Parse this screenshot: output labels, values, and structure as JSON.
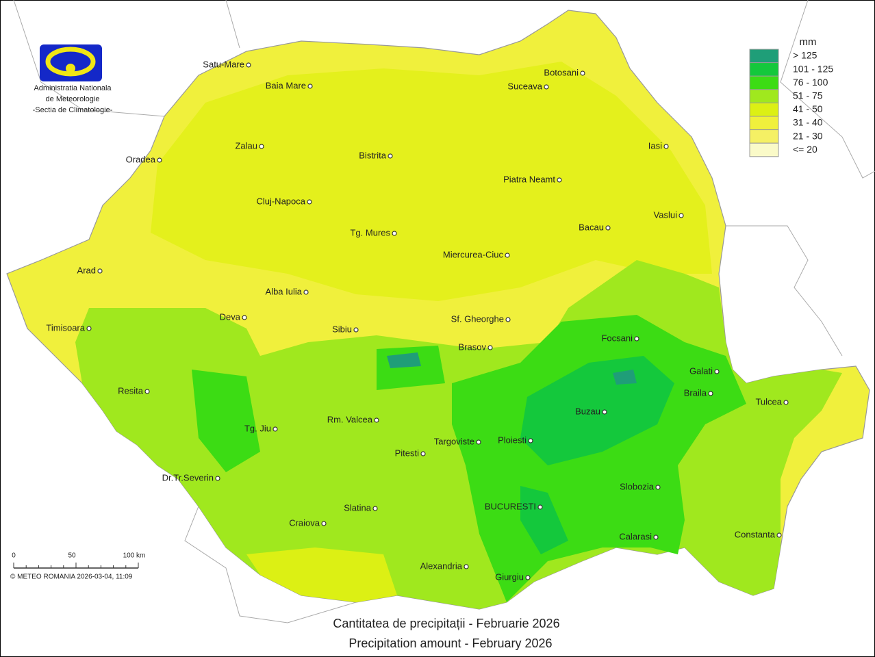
{
  "logo": {
    "lines": [
      "Administratia Nationala",
      "de Meteorologie",
      "-Sectia de Climatologie-"
    ]
  },
  "legend": {
    "unit": "mm",
    "items": [
      {
        "label": "> 125",
        "color": "#1f9e78"
      },
      {
        "label": "101 - 125",
        "color": "#14c83c"
      },
      {
        "label": "76 - 100",
        "color": "#3cdc14"
      },
      {
        "label": "51 - 75",
        "color": "#a0e81e"
      },
      {
        "label": "41 - 50",
        "color": "#dcf014"
      },
      {
        "label": "31 - 40",
        "color": "#f0f03c"
      },
      {
        "label": "21 - 30",
        "color": "#f5f064"
      },
      {
        "label": "<= 20",
        "color": "#fafac8"
      }
    ]
  },
  "cities": [
    "Satu-Mare",
    "Baia Mare",
    "Suceava",
    "Botosani",
    "Zalau",
    "Oradea",
    "Bistrita",
    "Iasi",
    "Piatra Neamt",
    "Cluj-Napoca",
    "Vaslui",
    "Bacau",
    "Tg. Mures",
    "Miercurea-Ciuc",
    "Arad",
    "Alba Iulia",
    "Deva",
    "Sf. Gheorghe",
    "Timisoara",
    "Sibiu",
    "Focsani",
    "Brasov",
    "Galati",
    "Resita",
    "Braila",
    "Tulcea",
    "Buzau",
    "Rm. Valcea",
    "Tg. Jiu",
    "Ploiesti",
    "Targoviste",
    "Pitesti",
    "Dr.Tr.Severin",
    "Slobozia",
    "BUCURESTI",
    "Slatina",
    "Craiova",
    "Constanta",
    "Calarasi",
    "Alexandria",
    "Giurgiu"
  ],
  "scale_bar": {
    "labels": [
      "0",
      "50",
      "100 km"
    ]
  },
  "copyright": "© METEO ROMANIA 2026-03-04, 11:09",
  "title": {
    "ro": "Cantitatea de precipitații - Februarie 2026",
    "en": "Precipitation amount -  February 2026"
  }
}
